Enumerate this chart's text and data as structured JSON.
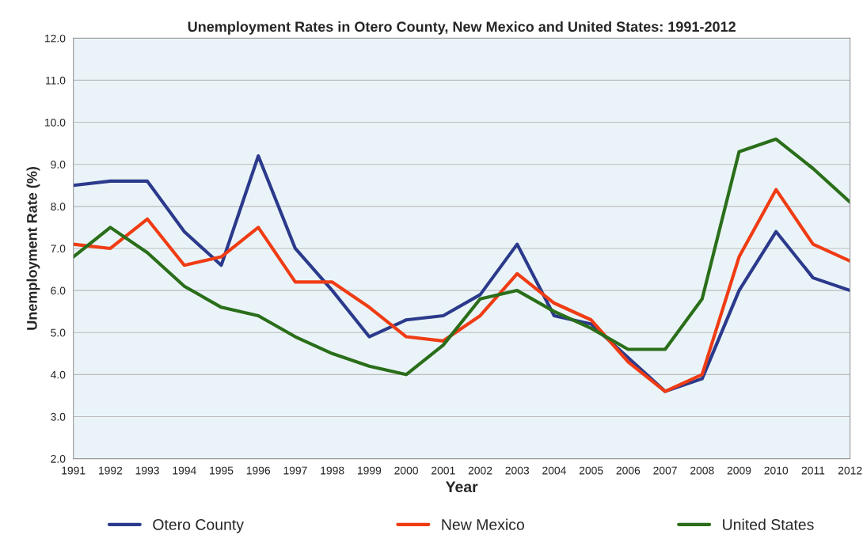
{
  "chart_data": {
    "type": "line",
    "title": "Unemployment Rates in Otero County, New Mexico and United States: 1991-2012",
    "xlabel": "Year",
    "ylabel": "Unemployment Rate (%)",
    "categories": [
      "1991",
      "1992",
      "1993",
      "1994",
      "1995",
      "1996",
      "1997",
      "1998",
      "1999",
      "2000",
      "2001",
      "2002",
      "2003",
      "2004",
      "2005",
      "2006",
      "2007",
      "2008",
      "2009",
      "2010",
      "2011",
      "2012"
    ],
    "series": [
      {
        "name": "Otero County",
        "color": "#2b3a8c",
        "values": [
          8.5,
          8.6,
          8.6,
          7.4,
          6.6,
          9.2,
          7.0,
          6.0,
          4.9,
          5.3,
          5.4,
          5.9,
          7.1,
          5.4,
          5.2,
          4.4,
          3.6,
          3.9,
          6.0,
          7.4,
          6.3,
          6.0
        ]
      },
      {
        "name": "New Mexico",
        "color": "#f03c14",
        "values": [
          7.1,
          7.0,
          7.7,
          6.6,
          6.8,
          7.5,
          6.2,
          6.2,
          5.6,
          4.9,
          4.8,
          5.4,
          6.4,
          5.7,
          5.3,
          4.3,
          3.6,
          4.0,
          6.8,
          8.4,
          7.1,
          6.7
        ]
      },
      {
        "name": "United States",
        "color": "#2a6e1a",
        "values": [
          6.8,
          7.5,
          6.9,
          6.1,
          5.6,
          5.4,
          4.9,
          4.5,
          4.2,
          4.0,
          4.7,
          5.8,
          6.0,
          5.5,
          5.1,
          4.6,
          4.6,
          5.8,
          9.3,
          9.6,
          8.9,
          8.1
        ]
      }
    ],
    "ylim": [
      2.0,
      12.0
    ],
    "yticks": [
      {
        "value": 2,
        "label": "2.0"
      },
      {
        "value": 3,
        "label": "3.0"
      },
      {
        "value": 4,
        "label": "4.0"
      },
      {
        "value": 5,
        "label": "5.0"
      },
      {
        "value": 6,
        "label": "6.0"
      },
      {
        "value": 7,
        "label": "7.0"
      },
      {
        "value": 8,
        "label": "8.0"
      },
      {
        "value": 9,
        "label": "9.0"
      },
      {
        "value": 10,
        "label": "10.0"
      },
      {
        "value": 11,
        "label": "11.0"
      },
      {
        "value": 12,
        "label": "12.0"
      }
    ],
    "grid": "y",
    "legend": "bottom",
    "marker": "none",
    "line_style": "solid"
  }
}
